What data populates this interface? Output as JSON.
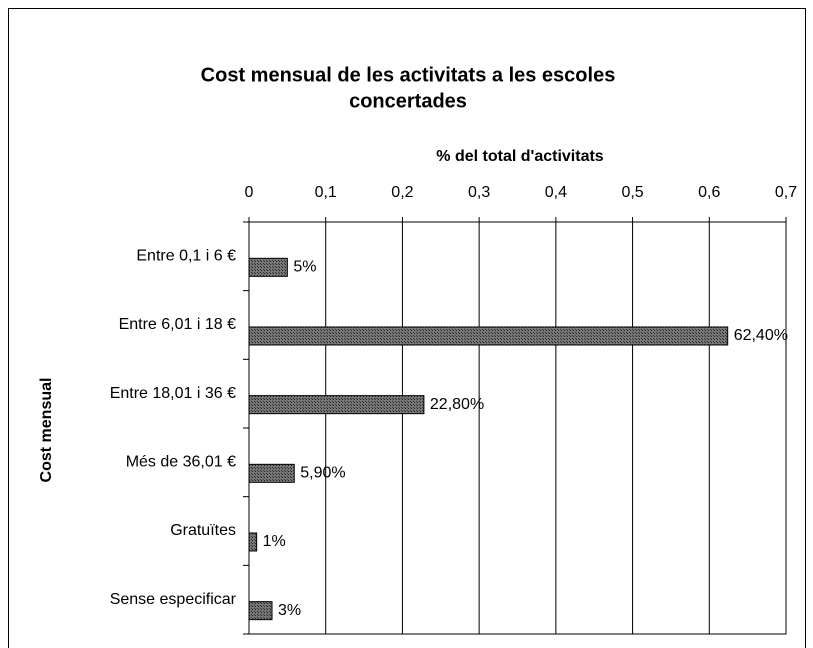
{
  "chart_data": {
    "type": "bar",
    "orientation": "horizontal",
    "title": [
      "Cost mensual de les activitats a les escoles",
      "concertades"
    ],
    "x_label": "% del total d'activitats",
    "y_label": "Cost mensual",
    "categories": [
      "Entre 0,1 i 6 €",
      "Entre 6,01 i 18 €",
      "Entre 18,01 i 36 €",
      "Més de 36,01 €",
      "Gratuïtes",
      "Sense especificar"
    ],
    "values": [
      0.05,
      0.624,
      0.228,
      0.059,
      0.01,
      0.03
    ],
    "value_labels": [
      "5%",
      "62,40%",
      "22,80%",
      "5,90%",
      "1%",
      "3%"
    ],
    "color": "#5a5a5a",
    "xlim": [
      0,
      0.7
    ],
    "xticks": [
      0,
      {
        "value": 0.1,
        "label": "0,1"
      },
      {
        "value": 0.2,
        "label": "0,2"
      },
      {
        "value": 0.3,
        "label": "0,3"
      },
      {
        "value": 0.4,
        "label": "0,4"
      },
      {
        "value": 0.5,
        "label": "0,5"
      },
      {
        "value": 0.6,
        "label": "0,6"
      },
      {
        "value": 0.7,
        "label": "0,7"
      }
    ],
    "grid": true
  }
}
